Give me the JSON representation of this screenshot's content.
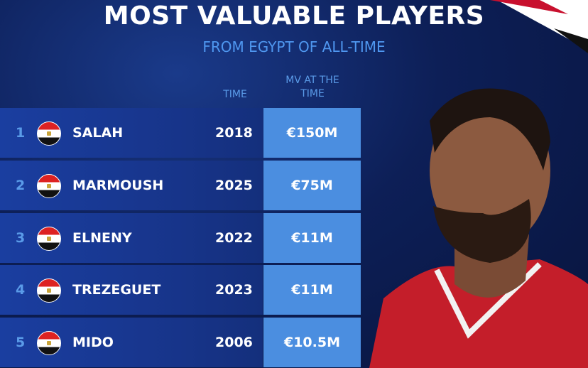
{
  "header": {
    "title": "MOST VALUABLE PLAYERS",
    "subtitle": "FROM EGYPT OF ALL-TIME"
  },
  "table": {
    "columns": [
      "TIME",
      "MV AT THE TIME"
    ],
    "rows": [
      [
        "1",
        "SALAH",
        "2018",
        "€150M"
      ],
      [
        "2",
        "MARMOUSH",
        "2025",
        "€75M"
      ],
      [
        "3",
        "ELNENY",
        "2022",
        "€11M"
      ],
      [
        "4",
        "TREZEGUET",
        "2023",
        "€11M"
      ],
      [
        "5",
        "MIDO",
        "2006",
        "€10.5M"
      ]
    ]
  }
}
